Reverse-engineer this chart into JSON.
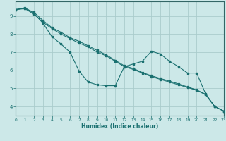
{
  "xlabel": "Humidex (Indice chaleur)",
  "bg_color": "#cce8e8",
  "grid_color": "#aacccc",
  "line_color": "#1a7070",
  "spine_color": "#336666",
  "xlim": [
    0,
    23
  ],
  "ylim": [
    3.5,
    9.8
  ],
  "xticks": [
    0,
    1,
    2,
    3,
    4,
    5,
    6,
    7,
    8,
    9,
    10,
    11,
    12,
    13,
    14,
    15,
    16,
    17,
    18,
    19,
    20,
    21,
    22,
    23
  ],
  "yticks": [
    4,
    5,
    6,
    7,
    8,
    9
  ],
  "series": [
    {
      "x": [
        0,
        1,
        2,
        3,
        4,
        5,
        6,
        7,
        8,
        9,
        10,
        11,
        12,
        13,
        14,
        15,
        16,
        17,
        18,
        19,
        20,
        21,
        22,
        23
      ],
      "y": [
        9.35,
        9.45,
        9.15,
        8.6,
        7.85,
        7.45,
        7.0,
        5.95,
        5.35,
        5.2,
        5.15,
        5.15,
        6.2,
        6.35,
        6.5,
        7.05,
        6.9,
        6.5,
        6.2,
        5.85,
        5.85,
        4.7,
        4.0,
        3.75
      ]
    },
    {
      "x": [
        0,
        1,
        2,
        3,
        4,
        5,
        6,
        7,
        8,
        9,
        10,
        11,
        12,
        13,
        14,
        15,
        16,
        17,
        18,
        19,
        20,
        21,
        22,
        23
      ],
      "y": [
        9.35,
        9.4,
        9.1,
        8.65,
        8.3,
        8.0,
        7.75,
        7.5,
        7.3,
        7.0,
        6.8,
        6.5,
        6.2,
        6.05,
        5.85,
        5.65,
        5.5,
        5.35,
        5.2,
        5.05,
        4.9,
        4.65,
        4.0,
        3.75
      ]
    },
    {
      "x": [
        0,
        1,
        2,
        3,
        4,
        5,
        6,
        7,
        8,
        9,
        10,
        11,
        12,
        13,
        14,
        15,
        16,
        17,
        18,
        19,
        20,
        21,
        22,
        23
      ],
      "y": [
        9.35,
        9.42,
        9.2,
        8.75,
        8.35,
        8.1,
        7.8,
        7.6,
        7.35,
        7.1,
        6.85,
        6.55,
        6.25,
        6.1,
        5.88,
        5.7,
        5.55,
        5.4,
        5.25,
        5.08,
        4.92,
        4.68,
        4.0,
        3.75
      ]
    }
  ]
}
